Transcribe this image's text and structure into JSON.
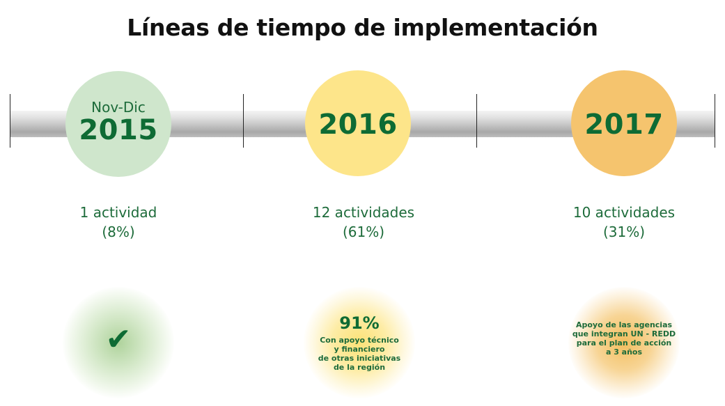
{
  "title": "Líneas de tiempo de implementación",
  "colors": {
    "dark_green": "#0e6b34",
    "circle_green": "#cfe6cc",
    "circle_yellow": "#fde58a",
    "circle_orange": "#f5c46e"
  },
  "periods": [
    {
      "year_small": "Nov-Dic",
      "year": "2015",
      "count": "1 actividad",
      "percent": "(8%)",
      "note_icon": "check-icon",
      "note_glyph": "✔"
    },
    {
      "year": "2016",
      "count": "12 actividades",
      "percent": "(61%)",
      "note_percent": "91%",
      "note_lines": [
        "Con apoyo técnico",
        "y financiero",
        "de otras iniciativas",
        "de la región"
      ]
    },
    {
      "year": "2017",
      "count": "10 actividades",
      "percent": "(31%)",
      "note_lines": [
        "Apoyo de las agencias",
        "que integran UN - REDD",
        "para el plan de acción",
        "a 3 años"
      ]
    }
  ]
}
